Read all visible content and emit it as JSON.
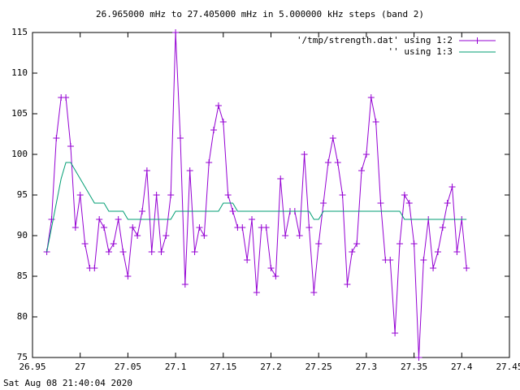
{
  "chart_data": {
    "type": "line",
    "title": "26.965000 mHz to 27.405000 mHz in 5.000000 kHz steps (band 2)",
    "footer": "Sat Aug 08 21:40:04 2020",
    "legend": "top-right",
    "x": [
      26.965,
      26.97,
      26.975,
      26.98,
      26.985,
      26.99,
      26.995,
      27,
      27.005,
      27.01,
      27.015,
      27.02,
      27.025,
      27.03,
      27.035,
      27.04,
      27.045,
      27.05,
      27.055,
      27.06,
      27.065,
      27.07,
      27.075,
      27.08,
      27.085,
      27.09,
      27.095,
      27.1,
      27.105,
      27.11,
      27.115,
      27.12,
      27.125,
      27.13,
      27.135,
      27.14,
      27.145,
      27.15,
      27.155,
      27.16,
      27.165,
      27.17,
      27.175,
      27.18,
      27.185,
      27.19,
      27.195,
      27.2,
      27.205,
      27.21,
      27.215,
      27.22,
      27.225,
      27.23,
      27.235,
      27.24,
      27.245,
      27.25,
      27.255,
      27.26,
      27.265,
      27.27,
      27.275,
      27.28,
      27.285,
      27.29,
      27.295,
      27.3,
      27.305,
      27.31,
      27.315,
      27.32,
      27.325,
      27.33,
      27.335,
      27.34,
      27.345,
      27.35,
      27.355,
      27.36,
      27.365,
      27.37,
      27.375,
      27.38,
      27.385,
      27.39,
      27.395,
      27.4,
      27.405
    ],
    "series": [
      {
        "name": "'/tmp/strength.dat' using 1:2",
        "color": "#9400d3",
        "points": true,
        "values": [
          88,
          92,
          102,
          107,
          107,
          101,
          91,
          95,
          89,
          86,
          86,
          92,
          91,
          88,
          89,
          92,
          88,
          85,
          91,
          90,
          93,
          98,
          88,
          95,
          88,
          90,
          95,
          115,
          102,
          84,
          98,
          88,
          91,
          90,
          99,
          103,
          106,
          104,
          95,
          93,
          91,
          91,
          87,
          92,
          83,
          91,
          91,
          86,
          85,
          97,
          90,
          93,
          93,
          90,
          100,
          91,
          83,
          89,
          94,
          99,
          102,
          99,
          95,
          84,
          88,
          89,
          98,
          100,
          107,
          104,
          94,
          87,
          87,
          78,
          89,
          95,
          94,
          89,
          75,
          87,
          92,
          86,
          88,
          91,
          94,
          96,
          88,
          92,
          86
        ]
      },
      {
        "name": "'' using 1:3",
        "color": "#009e73",
        "points": false,
        "values": [
          88,
          91,
          94,
          97,
          99,
          99,
          98,
          97,
          96,
          95,
          94,
          94,
          94,
          93,
          93,
          93,
          93,
          92,
          92,
          92,
          92,
          92,
          92,
          92,
          92,
          92,
          92,
          93,
          93,
          93,
          93,
          93,
          93,
          93,
          93,
          93,
          93,
          94,
          94,
          94,
          93,
          93,
          93,
          93,
          93,
          93,
          93,
          93,
          93,
          93,
          93,
          93,
          93,
          93,
          93,
          93,
          92,
          92,
          93,
          93,
          93,
          93,
          93,
          93,
          93,
          93,
          93,
          93,
          93,
          93,
          93,
          93,
          93,
          93,
          93,
          92,
          92,
          92,
          92,
          92,
          92,
          92,
          92,
          92,
          92,
          92,
          92,
          92,
          92
        ]
      }
    ],
    "xlim": [
      26.95,
      27.45
    ],
    "xticks": [
      26.95,
      27,
      27.05,
      27.1,
      27.15,
      27.2,
      27.25,
      27.3,
      27.35,
      27.4,
      27.45
    ],
    "ylim": [
      75,
      115
    ],
    "yticks": [
      75,
      80,
      85,
      90,
      95,
      100,
      105,
      110,
      115
    ]
  }
}
